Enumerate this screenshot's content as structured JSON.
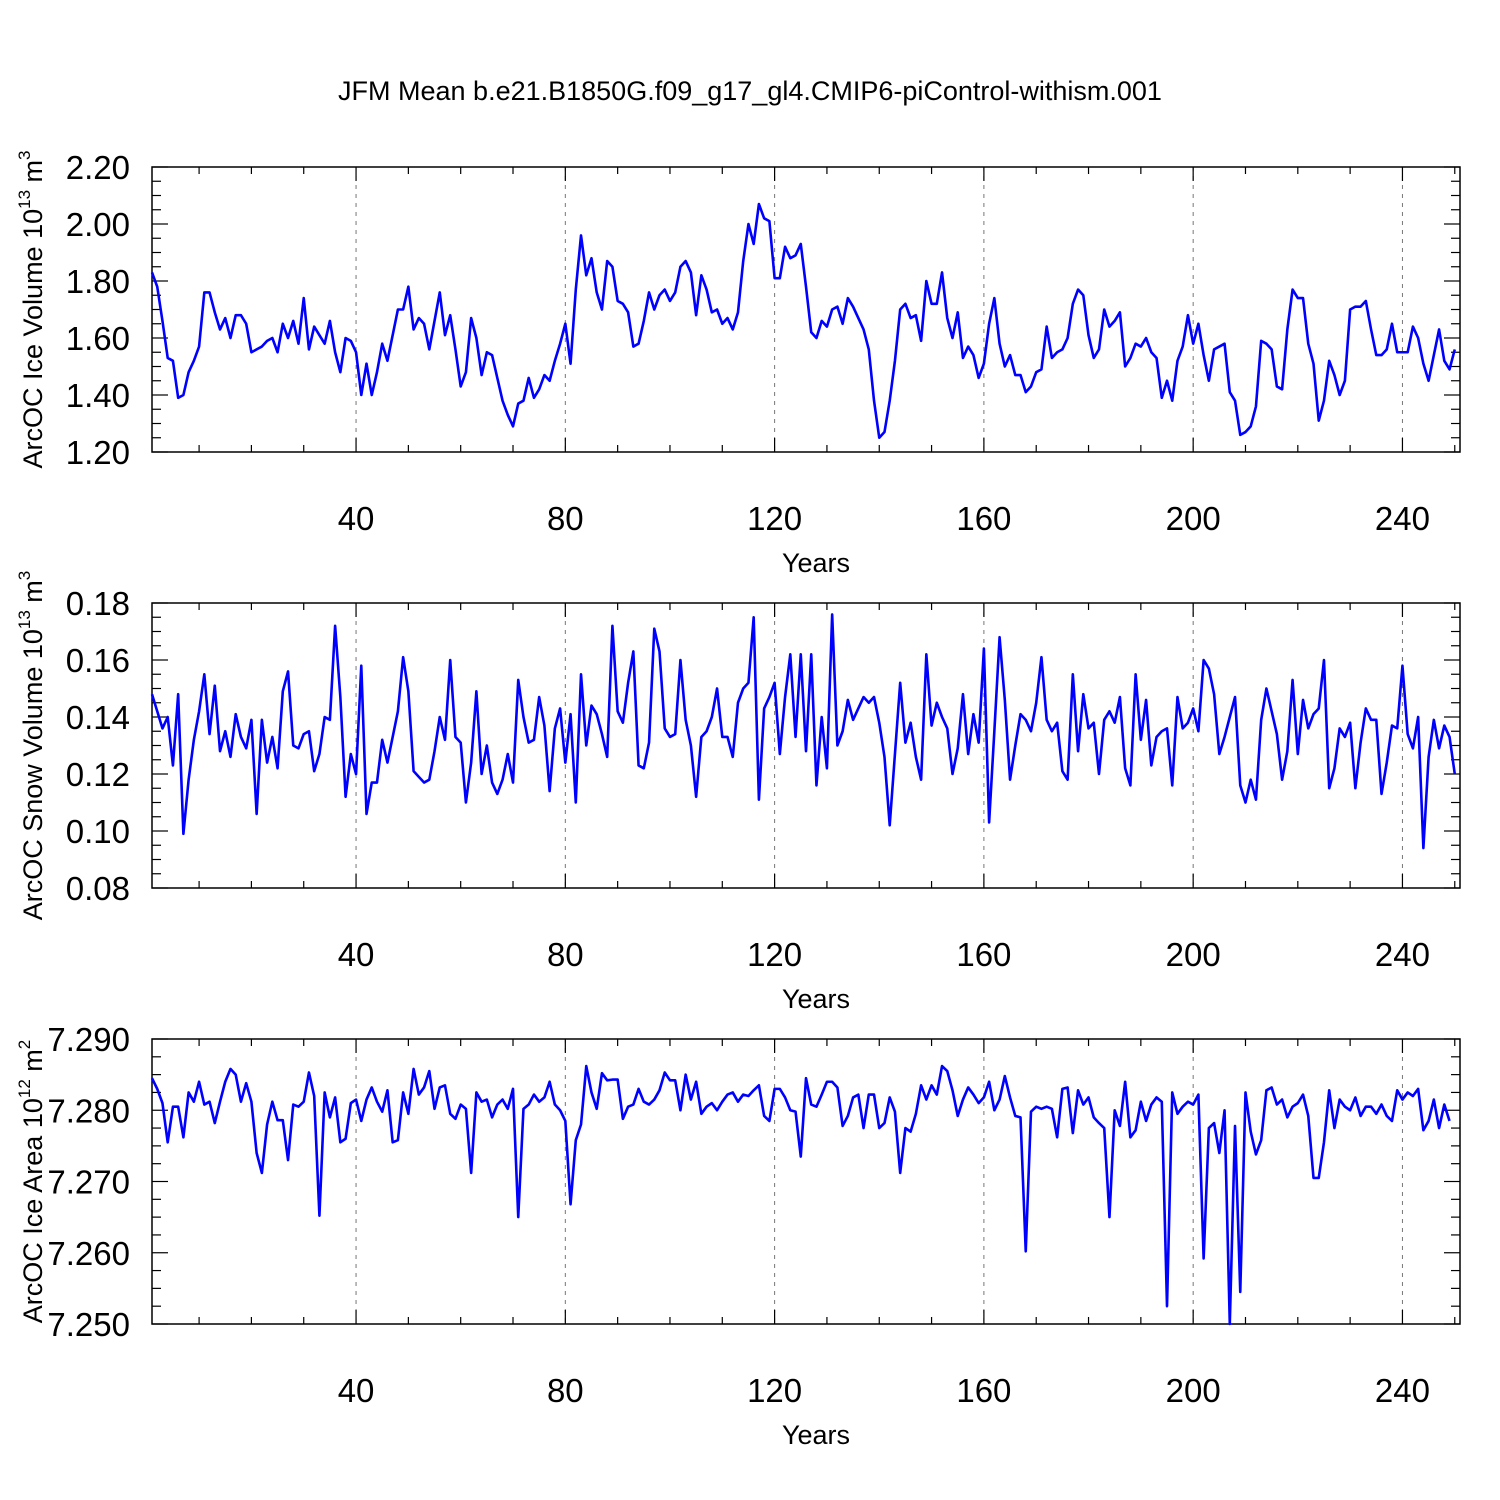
{
  "title": "JFM Mean b.e21.B1850G.f09_g17_gl4.CMIP6-piControl-withism.001",
  "chart_data": [
    {
      "type": "line",
      "ylabel": {
        "base": "ArcOC Ice Volume 10",
        "exp": "13",
        "unit": " m",
        "unit_exp": "3"
      },
      "xlabel": "Years",
      "xlim": [
        1,
        251
      ],
      "ylim": [
        1.2,
        2.2
      ],
      "yticks": [
        "1.20",
        "1.40",
        "1.60",
        "1.80",
        "2.00",
        "2.20"
      ],
      "xticks": [
        "40",
        "80",
        "120",
        "160",
        "200",
        "240"
      ],
      "grid": "vertical dashed at major x ticks",
      "color": "#0000ff",
      "x_start": 1,
      "values": [
        1.83,
        1.78,
        1.66,
        1.53,
        1.52,
        1.39,
        1.4,
        1.48,
        1.52,
        1.57,
        1.76,
        1.76,
        1.69,
        1.63,
        1.67,
        1.6,
        1.68,
        1.68,
        1.65,
        1.55,
        1.56,
        1.57,
        1.59,
        1.6,
        1.55,
        1.65,
        1.6,
        1.66,
        1.58,
        1.74,
        1.56,
        1.64,
        1.61,
        1.58,
        1.66,
        1.55,
        1.48,
        1.6,
        1.59,
        1.55,
        1.4,
        1.51,
        1.4,
        1.48,
        1.58,
        1.52,
        1.61,
        1.7,
        1.7,
        1.78,
        1.63,
        1.67,
        1.65,
        1.56,
        1.66,
        1.76,
        1.61,
        1.68,
        1.56,
        1.43,
        1.48,
        1.67,
        1.6,
        1.47,
        1.55,
        1.54,
        1.46,
        1.38,
        1.33,
        1.29,
        1.37,
        1.38,
        1.46,
        1.39,
        1.42,
        1.47,
        1.45,
        1.52,
        1.58,
        1.65,
        1.51,
        1.77,
        1.96,
        1.82,
        1.88,
        1.76,
        1.7,
        1.87,
        1.85,
        1.73,
        1.72,
        1.69,
        1.57,
        1.58,
        1.66,
        1.76,
        1.7,
        1.75,
        1.77,
        1.73,
        1.76,
        1.85,
        1.87,
        1.83,
        1.68,
        1.82,
        1.77,
        1.69,
        1.7,
        1.65,
        1.67,
        1.63,
        1.69,
        1.87,
        2.0,
        1.93,
        2.07,
        2.02,
        2.01,
        1.81,
        1.81,
        1.92,
        1.88,
        1.89,
        1.93,
        1.78,
        1.62,
        1.6,
        1.66,
        1.64,
        1.7,
        1.71,
        1.65,
        1.74,
        1.71,
        1.67,
        1.63,
        1.56,
        1.38,
        1.25,
        1.27,
        1.38,
        1.52,
        1.7,
        1.72,
        1.67,
        1.68,
        1.59,
        1.8,
        1.72,
        1.72,
        1.83,
        1.67,
        1.6,
        1.69,
        1.53,
        1.57,
        1.54,
        1.46,
        1.51,
        1.65,
        1.74,
        1.58,
        1.5,
        1.54,
        1.47,
        1.47,
        1.41,
        1.43,
        1.48,
        1.49,
        1.64,
        1.53,
        1.55,
        1.56,
        1.6,
        1.72,
        1.77,
        1.75,
        1.61,
        1.53,
        1.56,
        1.7,
        1.64,
        1.66,
        1.69,
        1.5,
        1.53,
        1.58,
        1.57,
        1.6,
        1.55,
        1.53,
        1.39,
        1.45,
        1.38,
        1.52,
        1.57,
        1.68,
        1.58,
        1.65,
        1.54,
        1.45,
        1.56,
        1.57,
        1.58,
        1.41,
        1.38,
        1.26,
        1.27,
        1.29,
        1.36,
        1.59,
        1.58,
        1.56,
        1.43,
        1.42,
        1.63,
        1.77,
        1.74,
        1.74,
        1.58,
        1.51,
        1.31,
        1.38,
        1.52,
        1.47,
        1.4,
        1.45,
        1.7,
        1.71,
        1.71,
        1.73,
        1.63,
        1.54,
        1.54,
        1.56,
        1.65,
        1.55,
        1.55,
        1.55,
        1.64,
        1.6,
        1.51,
        1.45,
        1.54,
        1.63,
        1.52,
        1.49,
        1.56
      ]
    },
    {
      "type": "line",
      "ylabel": {
        "base": "ArcOC Snow Volume 10",
        "exp": "13",
        "unit": " m",
        "unit_exp": "3"
      },
      "xlabel": "Years",
      "xlim": [
        1,
        251
      ],
      "ylim": [
        0.08,
        0.18
      ],
      "yticks": [
        "0.08",
        "0.10",
        "0.12",
        "0.14",
        "0.16",
        "0.18"
      ],
      "xticks": [
        "40",
        "80",
        "120",
        "160",
        "200",
        "240"
      ],
      "grid": "vertical dashed at major x ticks",
      "color": "#0000ff",
      "x_start": 1,
      "values": [
        0.148,
        0.142,
        0.136,
        0.14,
        0.123,
        0.148,
        0.099,
        0.118,
        0.132,
        0.142,
        0.155,
        0.134,
        0.151,
        0.128,
        0.135,
        0.126,
        0.141,
        0.133,
        0.129,
        0.139,
        0.106,
        0.139,
        0.124,
        0.133,
        0.122,
        0.149,
        0.156,
        0.13,
        0.129,
        0.134,
        0.135,
        0.121,
        0.127,
        0.14,
        0.139,
        0.172,
        0.147,
        0.112,
        0.127,
        0.12,
        0.158,
        0.106,
        0.117,
        0.117,
        0.132,
        0.124,
        0.133,
        0.142,
        0.161,
        0.149,
        0.121,
        0.119,
        0.117,
        0.118,
        0.128,
        0.14,
        0.132,
        0.16,
        0.133,
        0.131,
        0.11,
        0.124,
        0.149,
        0.12,
        0.13,
        0.117,
        0.113,
        0.118,
        0.127,
        0.117,
        0.153,
        0.14,
        0.131,
        0.132,
        0.147,
        0.137,
        0.114,
        0.136,
        0.143,
        0.124,
        0.141,
        0.11,
        0.155,
        0.13,
        0.144,
        0.141,
        0.134,
        0.126,
        0.172,
        0.142,
        0.138,
        0.152,
        0.163,
        0.123,
        0.122,
        0.131,
        0.171,
        0.163,
        0.136,
        0.133,
        0.134,
        0.16,
        0.139,
        0.13,
        0.112,
        0.133,
        0.135,
        0.14,
        0.15,
        0.133,
        0.133,
        0.126,
        0.145,
        0.15,
        0.152,
        0.175,
        0.111,
        0.143,
        0.147,
        0.152,
        0.127,
        0.147,
        0.162,
        0.133,
        0.162,
        0.128,
        0.162,
        0.116,
        0.14,
        0.122,
        0.176,
        0.13,
        0.135,
        0.146,
        0.139,
        0.143,
        0.147,
        0.145,
        0.147,
        0.138,
        0.126,
        0.102,
        0.127,
        0.152,
        0.131,
        0.138,
        0.126,
        0.118,
        0.162,
        0.137,
        0.145,
        0.14,
        0.136,
        0.12,
        0.129,
        0.148,
        0.127,
        0.141,
        0.131,
        0.164,
        0.103,
        0.135,
        0.168,
        0.146,
        0.118,
        0.13,
        0.141,
        0.139,
        0.135,
        0.145,
        0.161,
        0.139,
        0.135,
        0.138,
        0.121,
        0.118,
        0.155,
        0.128,
        0.148,
        0.136,
        0.138,
        0.12,
        0.139,
        0.142,
        0.138,
        0.147,
        0.122,
        0.116,
        0.155,
        0.132,
        0.146,
        0.123,
        0.133,
        0.135,
        0.136,
        0.116,
        0.147,
        0.136,
        0.138,
        0.143,
        0.135,
        0.16,
        0.157,
        0.148,
        0.127,
        0.133,
        0.14,
        0.147,
        0.116,
        0.11,
        0.118,
        0.111,
        0.139,
        0.15,
        0.142,
        0.134,
        0.118,
        0.128,
        0.153,
        0.127,
        0.146,
        0.136,
        0.141,
        0.143,
        0.16,
        0.115,
        0.122,
        0.136,
        0.133,
        0.138,
        0.115,
        0.131,
        0.143,
        0.139,
        0.139,
        0.113,
        0.124,
        0.137,
        0.136,
        0.158,
        0.134,
        0.129,
        0.14,
        0.094,
        0.126,
        0.139,
        0.129,
        0.137,
        0.133,
        0.12
      ]
    },
    {
      "type": "line",
      "ylabel": {
        "base": "ArcOC Ice Area 10",
        "exp": "12",
        "unit": " m",
        "unit_exp": "2"
      },
      "xlabel": "Years",
      "xlim": [
        1,
        251
      ],
      "ylim": [
        7.25,
        7.29
      ],
      "yticks": [
        "7.250",
        "7.260",
        "7.270",
        "7.280",
        "7.290"
      ],
      "xticks": [
        "40",
        "80",
        "120",
        "160",
        "200",
        "240"
      ],
      "grid": "vertical dashed at major x ticks",
      "color": "#0000ff",
      "x_start": 1,
      "values": [
        7.2845,
        7.283,
        7.281,
        7.2755,
        7.2805,
        7.2805,
        7.2762,
        7.2825,
        7.2812,
        7.284,
        7.2808,
        7.2812,
        7.2782,
        7.2812,
        7.284,
        7.2858,
        7.285,
        7.2812,
        7.2838,
        7.2812,
        7.274,
        7.2712,
        7.278,
        7.2812,
        7.2786,
        7.2786,
        7.273,
        7.2808,
        7.2805,
        7.2812,
        7.2853,
        7.282,
        7.2652,
        7.2825,
        7.279,
        7.2818,
        7.2755,
        7.276,
        7.281,
        7.2815,
        7.2785,
        7.2815,
        7.2832,
        7.2812,
        7.2798,
        7.2828,
        7.2755,
        7.2758,
        7.2825,
        7.2795,
        7.2858,
        7.2822,
        7.2832,
        7.2855,
        7.2802,
        7.2832,
        7.2835,
        7.2795,
        7.2788,
        7.2808,
        7.2802,
        7.2712,
        7.2825,
        7.2812,
        7.2815,
        7.279,
        7.2808,
        7.2815,
        7.2802,
        7.283,
        7.265,
        7.2802,
        7.2808,
        7.2822,
        7.2812,
        7.2818,
        7.284,
        7.2808,
        7.28,
        7.2785,
        7.2668,
        7.2758,
        7.278,
        7.2862,
        7.2825,
        7.2802,
        7.2852,
        7.2842,
        7.2843,
        7.2843,
        7.2788,
        7.2805,
        7.2808,
        7.283,
        7.2812,
        7.2808,
        7.2815,
        7.2828,
        7.2853,
        7.2842,
        7.2842,
        7.28,
        7.285,
        7.2815,
        7.284,
        7.2795,
        7.2805,
        7.281,
        7.28,
        7.2812,
        7.2822,
        7.2825,
        7.2812,
        7.2822,
        7.282,
        7.2828,
        7.2835,
        7.2792,
        7.2785,
        7.283,
        7.283,
        7.2818,
        7.28,
        7.2798,
        7.2735,
        7.2845,
        7.2808,
        7.2805,
        7.2822,
        7.284,
        7.284,
        7.2832,
        7.2778,
        7.2792,
        7.2818,
        7.2822,
        7.2775,
        7.2822,
        7.2822,
        7.2775,
        7.2782,
        7.2818,
        7.2798,
        7.2712,
        7.2775,
        7.277,
        7.2795,
        7.2835,
        7.2815,
        7.2835,
        7.2822,
        7.2862,
        7.2855,
        7.2828,
        7.2792,
        7.2815,
        7.2832,
        7.2822,
        7.281,
        7.2818,
        7.284,
        7.28,
        7.2815,
        7.2848,
        7.2818,
        7.2792,
        7.279,
        7.2602,
        7.2798,
        7.2805,
        7.2802,
        7.2805,
        7.2802,
        7.2762,
        7.283,
        7.2832,
        7.2768,
        7.2828,
        7.2808,
        7.2818,
        7.279,
        7.2782,
        7.2775,
        7.265,
        7.28,
        7.2778,
        7.284,
        7.2762,
        7.2772,
        7.2812,
        7.2785,
        7.2808,
        7.2818,
        7.2812,
        7.2525,
        7.2825,
        7.2795,
        7.2805,
        7.2812,
        7.2808,
        7.2822,
        7.2592,
        7.2775,
        7.2782,
        7.274,
        7.28,
        7.25,
        7.2778,
        7.2545,
        7.2825,
        7.277,
        7.2738,
        7.2758,
        7.2828,
        7.2832,
        7.2808,
        7.2815,
        7.279,
        7.2805,
        7.281,
        7.2822,
        7.2792,
        7.2705,
        7.2705,
        7.2755,
        7.2828,
        7.2775,
        7.2815,
        7.2805,
        7.28,
        7.2818,
        7.2792,
        7.2805,
        7.2805,
        7.2795,
        7.2808,
        7.2792,
        7.2785,
        7.2828,
        7.2815,
        7.2825,
        7.282,
        7.283,
        7.2772,
        7.2785,
        7.2815,
        7.2775,
        7.2808,
        7.2785
      ]
    }
  ]
}
